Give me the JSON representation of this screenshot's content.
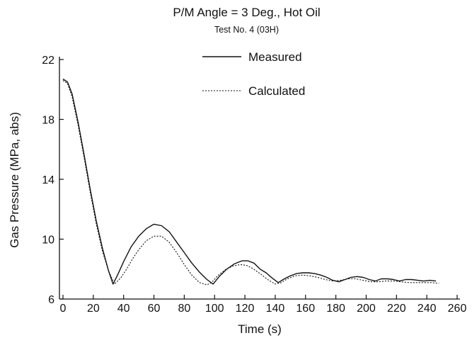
{
  "chart_data": {
    "type": "line",
    "title": "P/M Angle = 3 Deg., Hot Oil",
    "subtitle": "Test No. 4 (03H)",
    "xlabel": "Time (s)",
    "ylabel": "Gas Pressure (MPa, abs)",
    "xlim": [
      0,
      260
    ],
    "ylim": [
      6,
      22
    ],
    "xticks": [
      0,
      20,
      40,
      60,
      80,
      100,
      120,
      140,
      160,
      180,
      200,
      220,
      240,
      260
    ],
    "yticks": [
      6,
      10,
      14,
      18,
      22
    ],
    "grid": false,
    "legend_position": "top-center",
    "series": [
      {
        "name": "Measured",
        "style": "solid",
        "color": "#111111",
        "x": [
          0,
          3,
          6,
          10,
          14,
          18,
          22,
          26,
          30,
          33,
          36,
          40,
          45,
          50,
          55,
          60,
          65,
          70,
          75,
          80,
          85,
          90,
          95,
          99,
          103,
          108,
          113,
          118,
          122,
          126,
          130,
          134,
          138,
          142,
          146,
          150,
          154,
          158,
          162,
          166,
          170,
          174,
          178,
          182,
          186,
          190,
          194,
          198,
          202,
          206,
          210,
          214,
          218,
          222,
          226,
          230,
          234,
          238,
          242,
          246
        ],
        "y": [
          20.7,
          20.5,
          19.7,
          17.8,
          15.6,
          13.3,
          11.2,
          9.4,
          7.9,
          7.0,
          7.6,
          8.5,
          9.5,
          10.2,
          10.7,
          11.0,
          10.9,
          10.5,
          9.8,
          9.1,
          8.4,
          7.8,
          7.3,
          7.0,
          7.5,
          8.0,
          8.35,
          8.55,
          8.55,
          8.4,
          8.0,
          7.75,
          7.4,
          7.1,
          7.35,
          7.55,
          7.7,
          7.75,
          7.75,
          7.7,
          7.6,
          7.45,
          7.25,
          7.15,
          7.3,
          7.45,
          7.5,
          7.45,
          7.3,
          7.2,
          7.35,
          7.35,
          7.3,
          7.2,
          7.3,
          7.3,
          7.25,
          7.2,
          7.25,
          7.2
        ]
      },
      {
        "name": "Calculated",
        "style": "dotted",
        "color": "#111111",
        "x": [
          0,
          3,
          6,
          10,
          14,
          18,
          22,
          26,
          30,
          34,
          38,
          42,
          46,
          50,
          55,
          60,
          65,
          70,
          75,
          80,
          85,
          90,
          95,
          98,
          102,
          107,
          112,
          117,
          121,
          125,
          130,
          135,
          140,
          144,
          148,
          153,
          158,
          163,
          168,
          173,
          178,
          183,
          188,
          193,
          198,
          203,
          208,
          213,
          218,
          223,
          228,
          233,
          238,
          243,
          248
        ],
        "y": [
          20.6,
          20.4,
          19.5,
          17.6,
          15.4,
          13.1,
          11.0,
          9.2,
          7.9,
          7.0,
          7.4,
          8.0,
          8.7,
          9.3,
          9.9,
          10.2,
          10.2,
          9.8,
          9.1,
          8.3,
          7.6,
          7.1,
          6.95,
          7.1,
          7.55,
          7.95,
          8.2,
          8.3,
          8.25,
          8.05,
          7.7,
          7.3,
          7.0,
          7.1,
          7.35,
          7.55,
          7.6,
          7.55,
          7.45,
          7.3,
          7.2,
          7.25,
          7.35,
          7.35,
          7.25,
          7.15,
          7.15,
          7.2,
          7.2,
          7.15,
          7.1,
          7.1,
          7.1,
          7.1,
          7.05
        ]
      }
    ]
  }
}
